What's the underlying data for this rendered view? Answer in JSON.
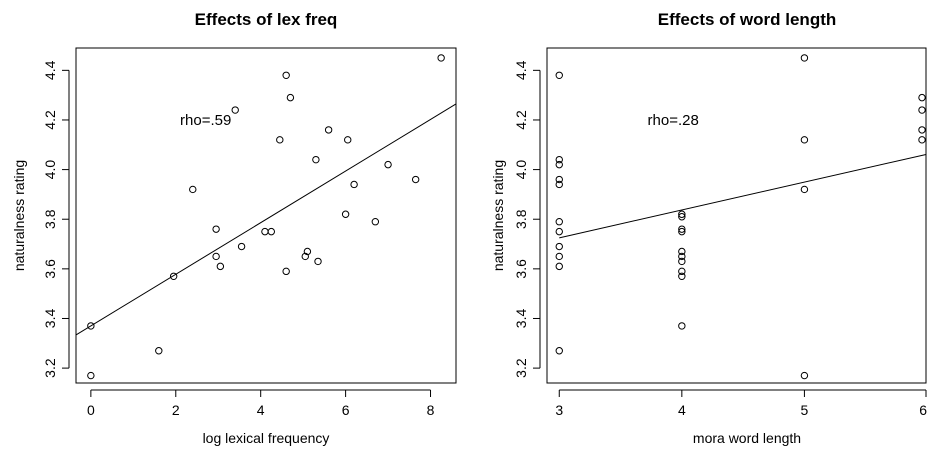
{
  "chart_data": [
    {
      "type": "scatter",
      "title": "Effects of lex freq",
      "xlabel": "log lexical frequency",
      "ylabel": "naturalness rating",
      "xlim": [
        -0.35,
        8.6
      ],
      "ylim": [
        3.14,
        4.49
      ],
      "xticks": [
        0,
        2,
        4,
        6,
        8
      ],
      "xtick_labels": [
        "0",
        "2",
        "4",
        "6",
        "8"
      ],
      "yticks": [
        3.2,
        3.4,
        3.6,
        3.8,
        4.0,
        4.2,
        4.4
      ],
      "ytick_labels": [
        "3.2",
        "3.4",
        "3.6",
        "3.8",
        "4.0",
        "4.2",
        "4.4"
      ],
      "annotation": {
        "text": "rho=.59",
        "x": 2.1,
        "y": 4.18
      },
      "fit_line": {
        "intercept": 3.37,
        "slope": 0.104
      },
      "points": [
        {
          "x": 0.0,
          "y": 3.37
        },
        {
          "x": 0.0,
          "y": 3.17
        },
        {
          "x": 1.6,
          "y": 3.27
        },
        {
          "x": 1.95,
          "y": 3.57
        },
        {
          "x": 2.4,
          "y": 3.92
        },
        {
          "x": 2.95,
          "y": 3.76
        },
        {
          "x": 2.95,
          "y": 3.65
        },
        {
          "x": 3.05,
          "y": 3.61
        },
        {
          "x": 3.4,
          "y": 4.24
        },
        {
          "x": 3.55,
          "y": 3.69
        },
        {
          "x": 4.1,
          "y": 3.75
        },
        {
          "x": 4.25,
          "y": 3.75
        },
        {
          "x": 4.45,
          "y": 4.12
        },
        {
          "x": 4.6,
          "y": 4.38
        },
        {
          "x": 4.6,
          "y": 3.59
        },
        {
          "x": 4.7,
          "y": 4.29
        },
        {
          "x": 5.05,
          "y": 3.65
        },
        {
          "x": 5.1,
          "y": 3.67
        },
        {
          "x": 5.3,
          "y": 4.04
        },
        {
          "x": 5.35,
          "y": 3.63
        },
        {
          "x": 5.6,
          "y": 4.16
        },
        {
          "x": 6.0,
          "y": 3.82
        },
        {
          "x": 6.05,
          "y": 4.12
        },
        {
          "x": 6.2,
          "y": 3.94
        },
        {
          "x": 6.7,
          "y": 3.79
        },
        {
          "x": 7.0,
          "y": 4.02
        },
        {
          "x": 7.65,
          "y": 3.96
        },
        {
          "x": 8.25,
          "y": 4.45
        }
      ]
    },
    {
      "type": "scatter",
      "title": "Effects of word length",
      "xlabel": "mora word length",
      "ylabel": "naturalness rating",
      "xlim": [
        2.9,
        6.0
      ],
      "ylim": [
        3.14,
        4.49
      ],
      "xticks": [
        3,
        4,
        5,
        6
      ],
      "xtick_labels": [
        "3",
        "4",
        "5",
        "6"
      ],
      "yticks": [
        3.2,
        3.4,
        3.6,
        3.8,
        4.0,
        4.2,
        4.4
      ],
      "ytick_labels": [
        "3.2",
        "3.4",
        "3.6",
        "3.8",
        "4.0",
        "4.2",
        "4.4"
      ],
      "annotation": {
        "text": "rho=.28",
        "x": 3.72,
        "y": 4.18
      },
      "fit_line": {
        "intercept": 3.725,
        "slope": 0.112,
        "x0": 3.0
      },
      "points": [
        {
          "x": 3,
          "y": 4.38
        },
        {
          "x": 3,
          "y": 4.04
        },
        {
          "x": 3,
          "y": 4.02
        },
        {
          "x": 3,
          "y": 3.96
        },
        {
          "x": 3,
          "y": 3.94
        },
        {
          "x": 3,
          "y": 3.79
        },
        {
          "x": 3,
          "y": 3.75
        },
        {
          "x": 3,
          "y": 3.69
        },
        {
          "x": 3,
          "y": 3.65
        },
        {
          "x": 3,
          "y": 3.61
        },
        {
          "x": 3,
          "y": 3.27
        },
        {
          "x": 4,
          "y": 3.82
        },
        {
          "x": 4,
          "y": 3.81
        },
        {
          "x": 4,
          "y": 3.76
        },
        {
          "x": 4,
          "y": 3.75
        },
        {
          "x": 4,
          "y": 3.67
        },
        {
          "x": 4,
          "y": 3.65
        },
        {
          "x": 4,
          "y": 3.63
        },
        {
          "x": 4,
          "y": 3.59
        },
        {
          "x": 4,
          "y": 3.57
        },
        {
          "x": 4,
          "y": 3.37
        },
        {
          "x": 5,
          "y": 4.45
        },
        {
          "x": 5,
          "y": 4.12
        },
        {
          "x": 5,
          "y": 3.92
        },
        {
          "x": 5,
          "y": 3.17
        },
        {
          "x": 6,
          "y": 4.29
        },
        {
          "x": 6,
          "y": 4.24
        },
        {
          "x": 6,
          "y": 4.16
        },
        {
          "x": 6,
          "y": 4.12
        }
      ]
    }
  ]
}
